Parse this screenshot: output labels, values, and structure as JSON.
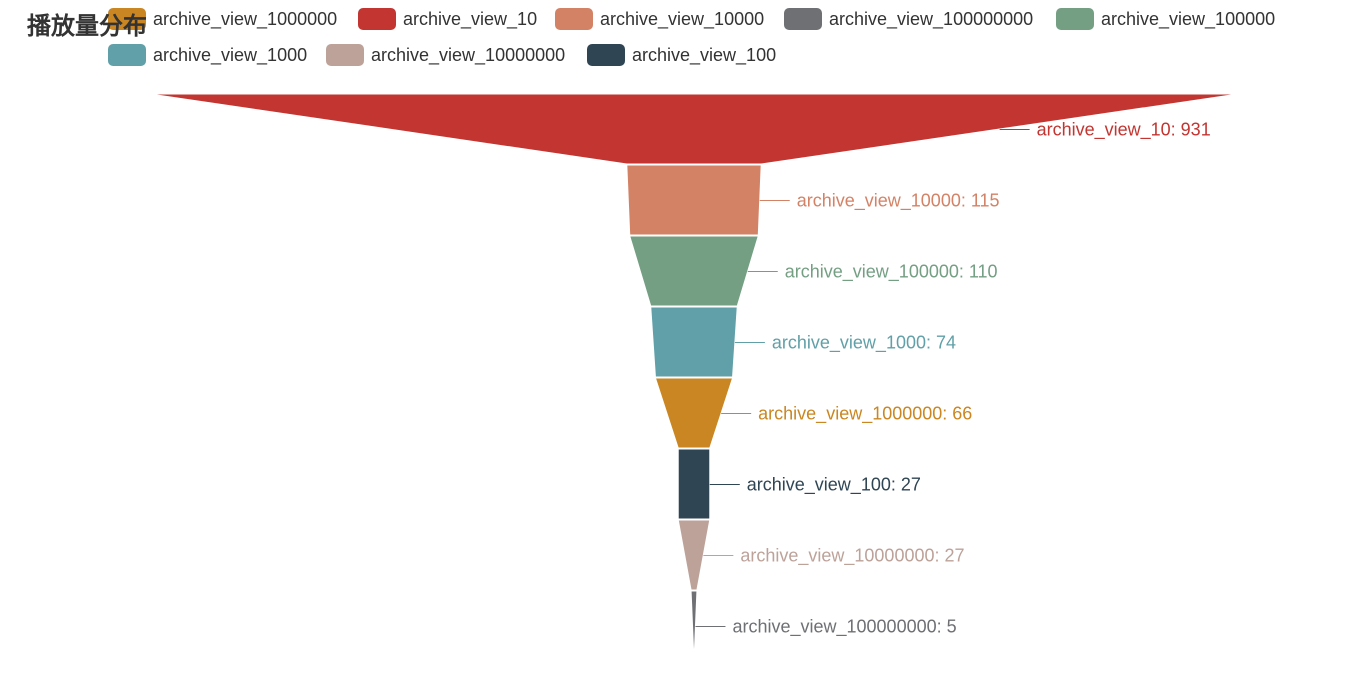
{
  "title": "播放量分布",
  "colors": {
    "archive_view_1000000": "#ca8622",
    "archive_view_10": "#c23531",
    "archive_view_10000": "#d48265",
    "archive_view_100000000": "#6e7074",
    "archive_view_100000": "#749f83",
    "archive_view_1000": "#61a0a8",
    "archive_view_10000000": "#bda29a",
    "archive_view_100": "#2f4554"
  },
  "legend": [
    "archive_view_1000000",
    "archive_view_10",
    "archive_view_10000",
    "archive_view_100000000",
    "archive_view_100000",
    "archive_view_1000",
    "archive_view_10000000",
    "archive_view_100"
  ],
  "chart_data": {
    "type": "funnel",
    "title": "播放量分布",
    "sort": "descending",
    "categories": [
      "archive_view_10",
      "archive_view_10000",
      "archive_view_100000",
      "archive_view_1000",
      "archive_view_1000000",
      "archive_view_100",
      "archive_view_10000000",
      "archive_view_100000000"
    ],
    "values": [
      931,
      115,
      110,
      74,
      66,
      27,
      27,
      5
    ],
    "labels": [
      "archive_view_10: 931",
      "archive_view_10000: 115",
      "archive_view_100000: 110",
      "archive_view_1000: 74",
      "archive_view_1000000: 66",
      "archive_view_100: 27",
      "archive_view_10000000: 27",
      "archive_view_100000000: 5"
    ],
    "legend_position": "top"
  }
}
